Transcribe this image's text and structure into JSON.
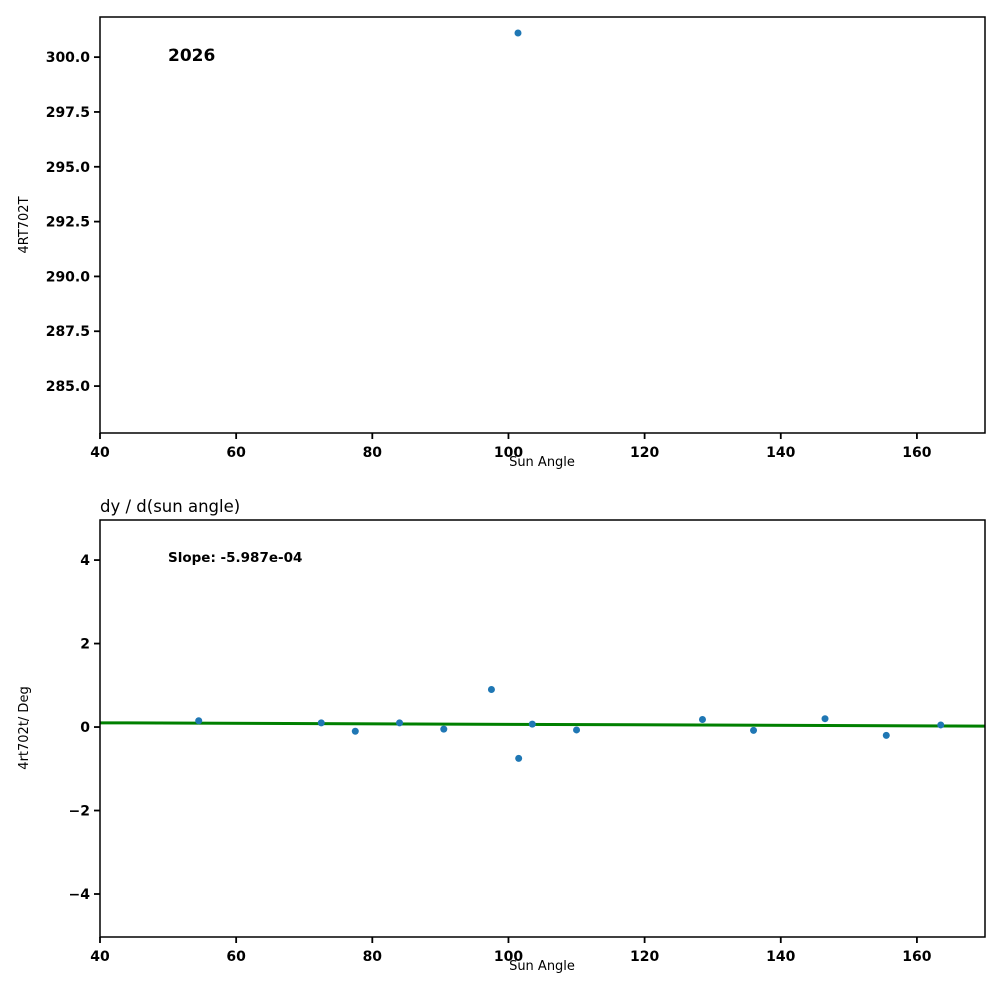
{
  "figure": {
    "background": "#ffffff",
    "frame_color": "#000000"
  },
  "chart_data": [
    {
      "type": "scatter",
      "annotation": "2026",
      "xlabel": "Sun Angle",
      "ylabel": "4RT702T",
      "xlim": [
        40,
        170
      ],
      "ylim": [
        282.86,
        301.83
      ],
      "xtick_values": [
        40,
        60,
        80,
        100,
        120,
        140,
        160
      ],
      "xtick_labels": [
        "40",
        "60",
        "80",
        "100",
        "120",
        "140",
        "160"
      ],
      "ytick_values": [
        285.0,
        287.5,
        290.0,
        292.5,
        295.0,
        297.5,
        300.0
      ],
      "ytick_labels": [
        "285.0",
        "287.5",
        "290.0",
        "292.5",
        "295.0",
        "297.5",
        "300.0"
      ],
      "grid": false,
      "point_color": "#1f77b4",
      "points": [
        {
          "x": 101.4,
          "y": 301.1
        }
      ]
    },
    {
      "type": "scatter",
      "title": "dy / d(sun angle)",
      "annotation": "Slope: -5.987e-04",
      "xlabel": "Sun Angle",
      "ylabel": "4rt702t/ Deg",
      "xlim": [
        40,
        170
      ],
      "ylim": [
        -5.03,
        4.96
      ],
      "xtick_values": [
        40,
        60,
        80,
        100,
        120,
        140,
        160
      ],
      "xtick_labels": [
        "40",
        "60",
        "80",
        "100",
        "120",
        "140",
        "160"
      ],
      "ytick_values": [
        -4,
        -2,
        0,
        2,
        4
      ],
      "ytick_labels": [
        "−4",
        "−2",
        "0",
        "2",
        "4"
      ],
      "grid": false,
      "point_color": "#1f77b4",
      "points": [
        {
          "x": 54.5,
          "y": 0.15
        },
        {
          "x": 72.5,
          "y": 0.1
        },
        {
          "x": 77.5,
          "y": -0.1
        },
        {
          "x": 84.0,
          "y": 0.1
        },
        {
          "x": 90.5,
          "y": -0.05
        },
        {
          "x": 97.5,
          "y": 0.9
        },
        {
          "x": 101.5,
          "y": -0.75
        },
        {
          "x": 103.5,
          "y": 0.07
        },
        {
          "x": 110.0,
          "y": -0.07
        },
        {
          "x": 128.5,
          "y": 0.18
        },
        {
          "x": 136.0,
          "y": -0.08
        },
        {
          "x": 146.5,
          "y": 0.2
        },
        {
          "x": 155.5,
          "y": -0.2
        },
        {
          "x": 163.5,
          "y": 0.05
        }
      ],
      "fit_line": {
        "slope": -0.0005987,
        "intercept": 0.125,
        "color": "#008000",
        "width": 3
      }
    }
  ]
}
